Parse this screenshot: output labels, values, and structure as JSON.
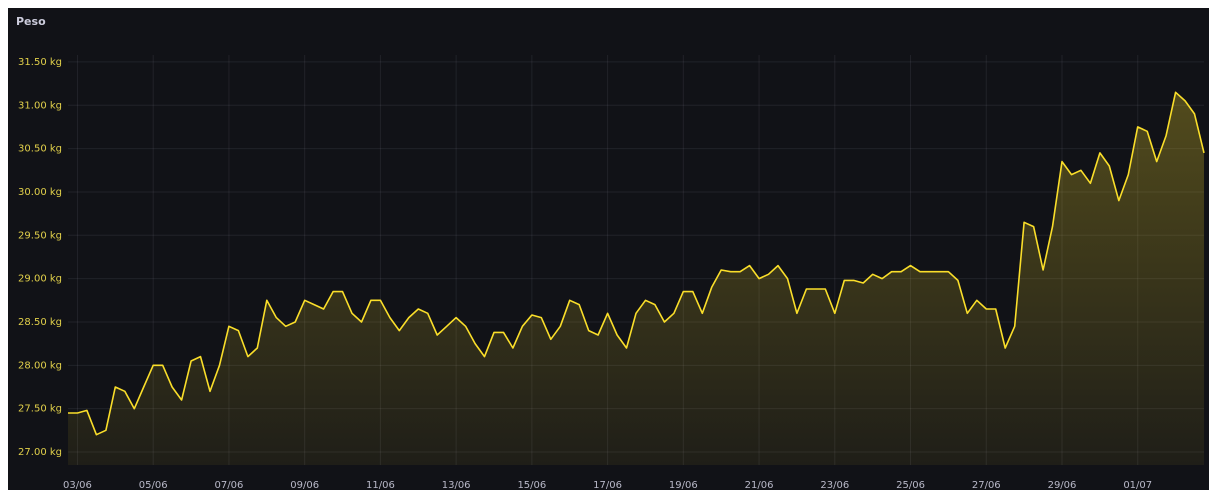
{
  "chart_data": {
    "type": "line",
    "title": "Peso",
    "categories": [
      null,
      "03/06",
      null,
      null,
      null,
      null,
      null,
      null,
      null,
      "05/06",
      null,
      null,
      null,
      null,
      null,
      null,
      null,
      "07/06",
      null,
      null,
      null,
      null,
      null,
      null,
      null,
      "09/06",
      null,
      null,
      null,
      null,
      null,
      null,
      null,
      "11/06",
      null,
      null,
      null,
      null,
      null,
      null,
      null,
      "13/06",
      null,
      null,
      null,
      null,
      null,
      null,
      null,
      "15/06",
      null,
      null,
      null,
      null,
      null,
      null,
      null,
      "17/06",
      null,
      null,
      null,
      null,
      null,
      null,
      null,
      "19/06",
      null,
      null,
      null,
      null,
      null,
      null,
      null,
      "21/06",
      null,
      null,
      null,
      null,
      null,
      null,
      null,
      "23/06",
      null,
      null,
      null,
      null,
      null,
      null,
      null,
      "25/06",
      null,
      null,
      null,
      null,
      null,
      null,
      null,
      "27/06",
      null,
      null,
      null,
      null,
      null,
      null,
      null,
      "29/06",
      null,
      null,
      null,
      null,
      null,
      null,
      null,
      "01/07",
      null,
      null,
      null,
      null,
      null,
      null,
      null
    ],
    "values": [
      27.45,
      27.45,
      27.48,
      27.2,
      27.25,
      27.75,
      27.7,
      27.5,
      27.75,
      28.0,
      28.0,
      27.75,
      27.6,
      28.05,
      28.1,
      27.7,
      28.0,
      28.45,
      28.4,
      28.1,
      28.2,
      28.75,
      28.55,
      28.45,
      28.5,
      28.75,
      28.7,
      28.65,
      28.85,
      28.85,
      28.6,
      28.5,
      28.75,
      28.75,
      28.55,
      28.4,
      28.55,
      28.65,
      28.6,
      28.35,
      28.45,
      28.55,
      28.45,
      28.25,
      28.1,
      28.38,
      28.38,
      28.2,
      28.45,
      28.58,
      28.55,
      28.3,
      28.45,
      28.75,
      28.7,
      28.4,
      28.35,
      28.6,
      28.35,
      28.2,
      28.6,
      28.75,
      28.7,
      28.5,
      28.6,
      28.85,
      28.85,
      28.6,
      28.9,
      29.1,
      29.08,
      29.08,
      29.15,
      29.0,
      29.05,
      29.15,
      29.0,
      28.6,
      28.88,
      28.88,
      28.88,
      28.6,
      28.98,
      28.98,
      28.95,
      29.05,
      29.0,
      29.08,
      29.08,
      29.15,
      29.08,
      29.08,
      29.08,
      29.08,
      28.98,
      28.6,
      28.75,
      28.65,
      28.65,
      28.2,
      28.45,
      29.65,
      29.6,
      29.1,
      29.6,
      30.35,
      30.2,
      30.25,
      30.1,
      30.45,
      30.3,
      29.9,
      30.2,
      30.75,
      30.7,
      30.35,
      30.65,
      31.15,
      31.05,
      30.9,
      30.45
    ],
    "color": "#fade2a",
    "ylim": [
      26.85,
      31.58
    ],
    "yticks": [
      {
        "value": 27,
        "label": "27.00 kg"
      },
      {
        "value": 27.5,
        "label": "27.50 kg"
      },
      {
        "value": 28,
        "label": "28.00 kg"
      },
      {
        "value": 28.5,
        "label": "28.50 kg"
      },
      {
        "value": 29,
        "label": "29.00 kg"
      },
      {
        "value": 29.5,
        "label": "29.50 kg"
      },
      {
        "value": 30,
        "label": "30.00 kg"
      },
      {
        "value": 30.5,
        "label": "30.50 kg"
      },
      {
        "value": 31,
        "label": "31.00 kg"
      },
      {
        "value": 31.5,
        "label": "31.50 kg"
      }
    ],
    "grid": true
  }
}
